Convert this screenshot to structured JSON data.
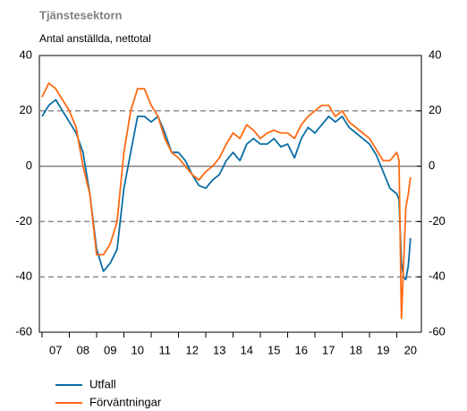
{
  "chart_data": {
    "type": "line",
    "title": "Tjänstesektorn",
    "subtitle": "Antal anställda, nettotal",
    "x": [
      2007.0,
      2007.25,
      2007.5,
      2007.75,
      2008.0,
      2008.25,
      2008.5,
      2008.75,
      2009.0,
      2009.25,
      2009.5,
      2009.75,
      2010.0,
      2010.25,
      2010.5,
      2010.75,
      2011.0,
      2011.25,
      2011.5,
      2011.75,
      2012.0,
      2012.25,
      2012.5,
      2012.75,
      2013.0,
      2013.25,
      2013.5,
      2013.75,
      2014.0,
      2014.25,
      2014.5,
      2014.75,
      2015.0,
      2015.25,
      2015.5,
      2015.75,
      2016.0,
      2016.25,
      2016.5,
      2016.75,
      2017.0,
      2017.25,
      2017.5,
      2017.75,
      2018.0,
      2018.25,
      2018.5,
      2018.75,
      2019.0,
      2019.25,
      2019.5,
      2019.75,
      2020.0,
      2020.08,
      2020.17,
      2020.25,
      2020.33,
      2020.42,
      2020.5
    ],
    "series": [
      {
        "name": "Utfall",
        "color": "#0b6ea3",
        "values": [
          18,
          22,
          24,
          20,
          16,
          12,
          5,
          -10,
          -30,
          -38,
          -35,
          -30,
          -8,
          5,
          18,
          18,
          16,
          18,
          12,
          5,
          5,
          2,
          -3,
          -7,
          -8,
          -5,
          -3,
          2,
          5,
          2,
          8,
          10,
          8,
          8,
          10,
          7,
          8,
          3,
          10,
          14,
          12,
          15,
          18,
          16,
          18,
          14,
          12,
          10,
          8,
          4,
          -2,
          -8,
          -10,
          -12,
          -35,
          -40,
          -41,
          -36,
          -26
        ]
      },
      {
        "name": "Förväntningar",
        "color": "#ff6a13",
        "values": [
          25,
          30,
          28,
          24,
          20,
          14,
          0,
          -10,
          -32,
          -32,
          -28,
          -20,
          5,
          20,
          28,
          28,
          22,
          18,
          10,
          5,
          3,
          0,
          -3,
          -5,
          -2,
          0,
          3,
          8,
          12,
          10,
          15,
          13,
          10,
          12,
          13,
          12,
          12,
          10,
          15,
          18,
          20,
          22,
          22,
          18,
          20,
          16,
          14,
          12,
          10,
          6,
          2,
          2,
          5,
          2,
          -55,
          -35,
          -15,
          -10,
          -4
        ]
      }
    ],
    "xlim": [
      2007,
      2020.9
    ],
    "xticks": [
      {
        "value": 2007.5,
        "label": "07"
      },
      {
        "value": 2008.5,
        "label": "08"
      },
      {
        "value": 2009.5,
        "label": "09"
      },
      {
        "value": 2010.5,
        "label": "10"
      },
      {
        "value": 2011.5,
        "label": "11"
      },
      {
        "value": 2012.5,
        "label": "12"
      },
      {
        "value": 2013.5,
        "label": "13"
      },
      {
        "value": 2014.5,
        "label": "14"
      },
      {
        "value": 2015.5,
        "label": "15"
      },
      {
        "value": 2016.5,
        "label": "16"
      },
      {
        "value": 2017.5,
        "label": "17"
      },
      {
        "value": 2018.5,
        "label": "18"
      },
      {
        "value": 2019.5,
        "label": "19"
      },
      {
        "value": 2020.5,
        "label": "20"
      }
    ],
    "ylim": [
      -60,
      40
    ],
    "yticks": [
      40,
      20,
      0,
      -20,
      -40,
      -60
    ],
    "y2lim": [
      -60,
      40
    ],
    "y2ticks": [
      40,
      20,
      0,
      -20,
      -40,
      -60
    ],
    "grid": true
  }
}
